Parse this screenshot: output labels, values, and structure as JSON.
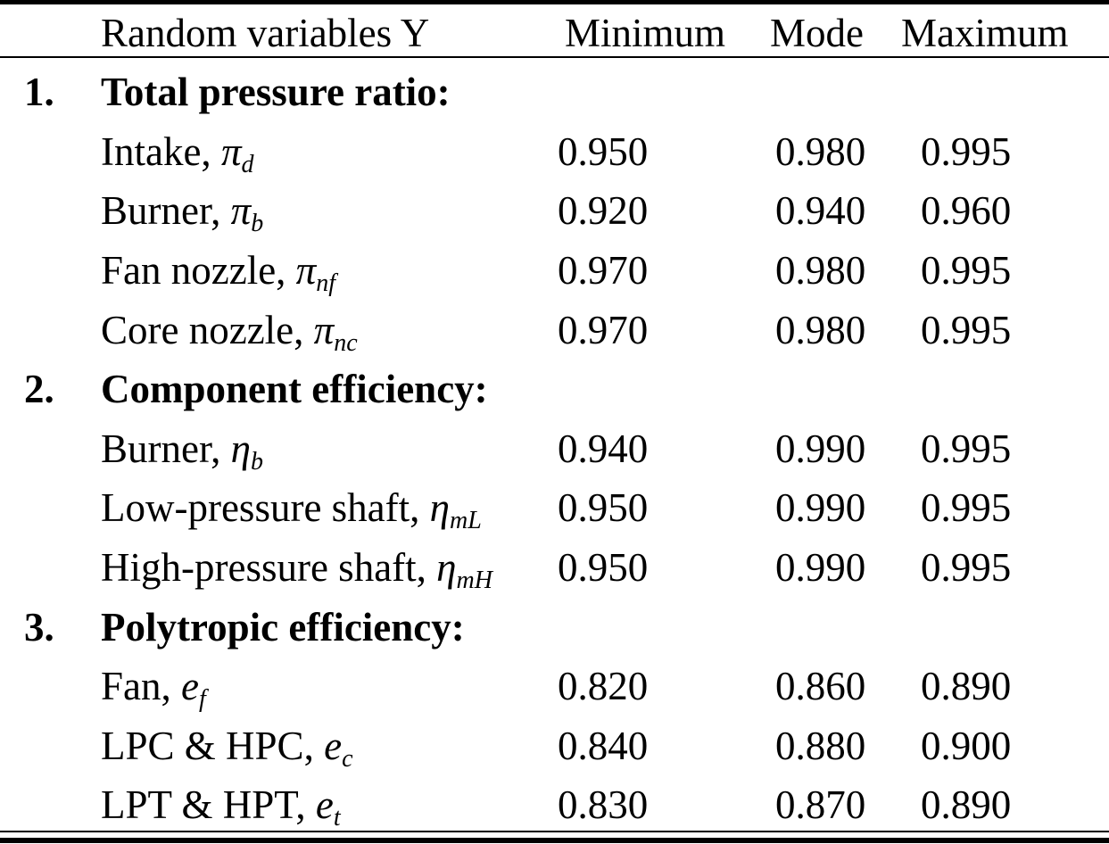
{
  "table": {
    "header": {
      "variables": "Random variables Y",
      "minimum": "Minimum",
      "mode": "Mode",
      "maximum": "Maximum"
    },
    "sections": [
      {
        "index": "1.",
        "title": "Total pressure ratio:",
        "rows": [
          {
            "name": "Intake, ",
            "symbol": "π",
            "sub": "d",
            "min": "0.950",
            "mode": "0.980",
            "max": "0.995"
          },
          {
            "name": "Burner, ",
            "symbol": "π",
            "sub": "b",
            "min": "0.920",
            "mode": "0.940",
            "max": "0.960"
          },
          {
            "name": "Fan nozzle, ",
            "symbol": "π",
            "sub": "nf",
            "min": "0.970",
            "mode": "0.980",
            "max": "0.995"
          },
          {
            "name": "Core nozzle, ",
            "symbol": "π",
            "sub": "nc",
            "min": "0.970",
            "mode": "0.980",
            "max": "0.995"
          }
        ]
      },
      {
        "index": "2.",
        "title": "Component efficiency:",
        "rows": [
          {
            "name": "Burner, ",
            "symbol": "η",
            "sub": "b",
            "min": "0.940",
            "mode": "0.990",
            "max": "0.995"
          },
          {
            "name": "Low-pressure shaft, ",
            "symbol": "η",
            "sub": "mL",
            "min": "0.950",
            "mode": "0.990",
            "max": "0.995"
          },
          {
            "name": "High-pressure shaft, ",
            "symbol": "η",
            "sub": "mH",
            "min": "0.950",
            "mode": "0.990",
            "max": "0.995"
          }
        ]
      },
      {
        "index": "3.",
        "title": "Polytropic efficiency:",
        "rows": [
          {
            "name": "Fan, ",
            "symbol": "e",
            "sub": "f",
            "min": "0.820",
            "mode": "0.860",
            "max": "0.890"
          },
          {
            "name": "LPC & HPC, ",
            "symbol": "e",
            "sub": "c",
            "min": "0.840",
            "mode": "0.880",
            "max": "0.900"
          },
          {
            "name": "LPT & HPT, ",
            "symbol": "e",
            "sub": "t",
            "min": "0.830",
            "mode": "0.870",
            "max": "0.890"
          }
        ]
      }
    ],
    "colors": {
      "text": "#000000",
      "background": "#ffffff",
      "rule": "#000000"
    }
  }
}
